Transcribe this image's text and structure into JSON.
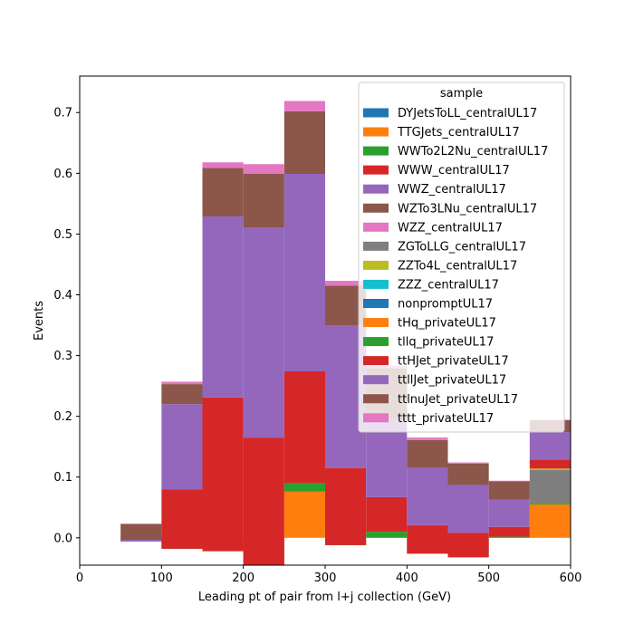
{
  "chart_data": {
    "type": "bar",
    "stacked": true,
    "histogram": true,
    "xlabel": "Leading pt of pair from l+j collection (GeV)",
    "ylabel": "Events",
    "xlim": [
      0,
      600
    ],
    "ylim": [
      -0.045,
      0.76
    ],
    "xticks": [
      0,
      100,
      200,
      300,
      400,
      500,
      600
    ],
    "yticks": [
      0.0,
      0.1,
      0.2,
      0.3,
      0.4,
      0.5,
      0.6,
      0.7
    ],
    "bin_edges": [
      50,
      100,
      150,
      200,
      250,
      300,
      350,
      400,
      450,
      500,
      550,
      600
    ],
    "legend_title": "sample",
    "legend_location": "upper right",
    "series": [
      {
        "name": "DYJetsToLL_centralUL17",
        "color": "#1f77b4",
        "values": [
          0,
          0,
          0,
          0,
          0,
          0,
          0,
          0,
          0,
          0,
          0
        ]
      },
      {
        "name": "TTGJets_centralUL17",
        "color": "#ff7f0e",
        "values": [
          0,
          0,
          0,
          0,
          0.076,
          0,
          0,
          0,
          0,
          0,
          0.055
        ]
      },
      {
        "name": "WWTo2L2Nu_centralUL17",
        "color": "#2ca02c",
        "values": [
          0,
          -0.018,
          -0.022,
          -0.045,
          0.014,
          -0.012,
          0.01,
          -0.026,
          -0.032,
          0.002,
          0.002
        ]
      },
      {
        "name": "WWW_centralUL17",
        "color": "#d62728",
        "values": [
          -0.006,
          0.098,
          0.253,
          0.21,
          0.184,
          0.127,
          0.057,
          0.047,
          0.04,
          0.016,
          0
        ]
      },
      {
        "name": "WWZ_centralUL17",
        "color": "#9467bd",
        "values": [
          0.003,
          0.14,
          0.298,
          0.346,
          0.325,
          0.235,
          0.196,
          0.095,
          0.079,
          0.045,
          0
        ]
      },
      {
        "name": "WZTo3LNu_centralUL17",
        "color": "#8c564b",
        "values": [
          0,
          0,
          0,
          0,
          0,
          0,
          -0.069,
          0,
          0,
          0,
          0
        ]
      },
      {
        "name": "WZZ_centralUL17",
        "color": "#e377c2",
        "values": [
          0,
          0,
          0,
          0,
          0,
          0,
          0,
          0,
          0,
          0,
          0
        ]
      },
      {
        "name": "ZGToLLG_centralUL17",
        "color": "#7f7f7f",
        "values": [
          0,
          0,
          0,
          0,
          0,
          0,
          0,
          0,
          0,
          0,
          0.055
        ]
      },
      {
        "name": "ZZTo4L_centralUL17",
        "color": "#bcbd22",
        "values": [
          0,
          0,
          0,
          0,
          0,
          0,
          0,
          0,
          0,
          0,
          0.002
        ]
      },
      {
        "name": "ZZZ_centralUL17",
        "color": "#17becf",
        "values": [
          0,
          0,
          0,
          0,
          0,
          0,
          0,
          0,
          0,
          0,
          0
        ]
      },
      {
        "name": "nonpromptUL17",
        "color": "#1f77b4",
        "values": [
          0,
          0,
          0,
          0,
          0,
          0,
          0,
          0,
          0,
          0,
          0
        ]
      },
      {
        "name": "tHq_privateUL17",
        "color": "#ff7f0e",
        "values": [
          0,
          0,
          0,
          0,
          0,
          0,
          0,
          0,
          0,
          0,
          0
        ]
      },
      {
        "name": "tllq_privateUL17",
        "color": "#2ca02c",
        "values": [
          0,
          0,
          0,
          0,
          0,
          0,
          0,
          0,
          0,
          0,
          0
        ]
      },
      {
        "name": "ttHJet_privateUL17",
        "color": "#d62728",
        "values": [
          0,
          0,
          0,
          0,
          0,
          0,
          0,
          0,
          0,
          0,
          0.015
        ]
      },
      {
        "name": "ttllJet_privateUL17",
        "color": "#9467bd",
        "values": [
          0,
          0,
          0,
          0,
          0,
          0,
          0,
          0,
          0,
          0,
          0.045
        ]
      },
      {
        "name": "ttlnuJet_privateUL17",
        "color": "#8c564b",
        "values": [
          0.026,
          0.033,
          0.08,
          0.088,
          0.103,
          0.065,
          0.085,
          0.045,
          0.035,
          0.03,
          0.02
        ]
      },
      {
        "name": "tttt_privateUL17",
        "color": "#e377c2",
        "values": [
          0,
          0.004,
          0.009,
          0.016,
          0.017,
          0.008,
          0.004,
          0.004,
          0.002,
          0.001,
          0
        ]
      }
    ]
  }
}
